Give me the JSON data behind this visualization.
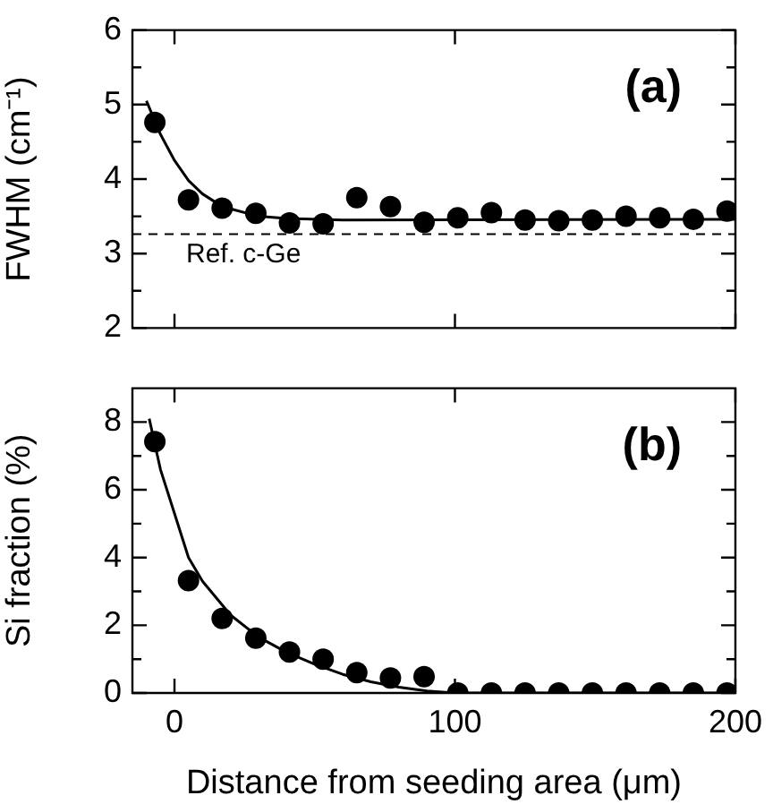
{
  "chart_data": [
    {
      "type": "scatter",
      "ylabel": "FWHM (cm⁻¹)",
      "annotations": [
        "(a)"
      ],
      "marker": "circle",
      "tick_labels": "y",
      "xlim": [
        -15,
        200
      ],
      "xticks": [
        0,
        100,
        200
      ],
      "ylim": [
        2,
        6
      ],
      "yticks": [
        2,
        {
          "value": 2.5,
          "label": null
        },
        3,
        {
          "value": 3.5,
          "label": null
        },
        4,
        {
          "value": 4.5,
          "label": null
        },
        5,
        {
          "value": 5.5,
          "label": null
        },
        6
      ],
      "ref_lines": [
        {
          "axis": "y",
          "value": 3.26,
          "label": "Ref. c-Ge",
          "color": "#000000",
          "line_style": "dashed"
        }
      ],
      "series": [
        {
          "type": "scatter",
          "color": "#000000",
          "x": [
            -7,
            5,
            17,
            29,
            41,
            53,
            65,
            77,
            89,
            101,
            113,
            125,
            137,
            149,
            161,
            173,
            185,
            197
          ],
          "values": [
            4.76,
            3.72,
            3.61,
            3.54,
            3.41,
            3.4,
            3.75,
            3.63,
            3.42,
            3.48,
            3.55,
            3.45,
            3.44,
            3.45,
            3.5,
            3.48,
            3.46,
            3.57
          ]
        },
        {
          "type": "line",
          "color": "#000000",
          "marker": "none",
          "line_style": "solid",
          "x": [
            -10,
            -5,
            0,
            5,
            10,
            15,
            20,
            30,
            40,
            60,
            200
          ],
          "values": [
            5.05,
            4.6,
            4.25,
            3.98,
            3.8,
            3.68,
            3.6,
            3.5,
            3.47,
            3.45,
            3.46
          ]
        }
      ]
    },
    {
      "type": "scatter",
      "ylabel": "Si fraction (%)",
      "xlabel": "Distance from seeding area (μm)",
      "annotations": [
        "(b)"
      ],
      "marker": "circle",
      "xlim": [
        -15,
        200
      ],
      "xticks": [
        0,
        100,
        200
      ],
      "ylim": [
        0,
        9
      ],
      "yticks": [
        0,
        {
          "value": 1,
          "label": null
        },
        2,
        {
          "value": 3,
          "label": null
        },
        4,
        {
          "value": 5,
          "label": null
        },
        6,
        {
          "value": 7,
          "label": null
        },
        8
      ],
      "series": [
        {
          "type": "scatter",
          "color": "#000000",
          "x": [
            -7,
            5,
            17,
            29,
            41,
            53,
            65,
            77,
            89,
            101,
            113,
            125,
            137,
            149,
            161,
            173,
            185,
            197
          ],
          "values": [
            7.42,
            3.32,
            2.2,
            1.62,
            1.21,
            1.0,
            0.6,
            0.44,
            0.48,
            0,
            0,
            0,
            0,
            0,
            0,
            0,
            0,
            0
          ]
        },
        {
          "type": "line",
          "color": "#000000",
          "marker": "none",
          "line_style": "solid",
          "x": [
            -9,
            -5,
            0,
            5,
            10,
            20,
            30,
            40,
            50,
            60,
            70,
            80,
            90,
            100,
            200
          ],
          "values": [
            8.1,
            6.6,
            5.3,
            4.0,
            3.3,
            2.3,
            1.65,
            1.2,
            0.85,
            0.55,
            0.33,
            0.17,
            0.06,
            0,
            0
          ]
        }
      ]
    }
  ]
}
